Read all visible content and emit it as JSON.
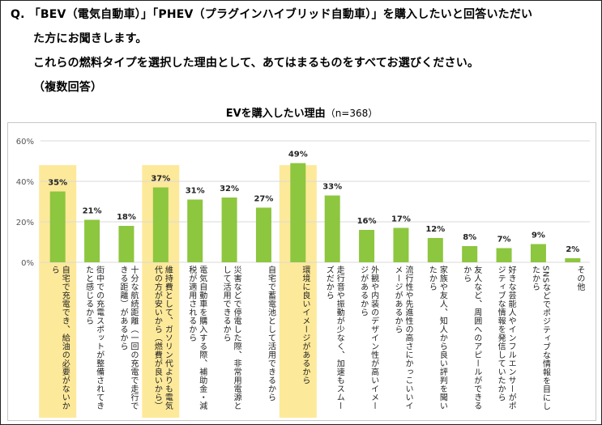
{
  "question": {
    "line1": "Q. 「BEV（電気自動車）」「PHEV（プラグインハイブリッド自動車）」を購入したいと回答いただい",
    "line2": "た方にお聞きします。",
    "line3": "これらの燃料タイプを選択した理由として、あてはまるものをすべてお選びください。",
    "line4": "（複数回答）"
  },
  "chart_data": {
    "type": "bar",
    "title": "EVを購入したい理由",
    "subtitle": "（n=368）",
    "ylim": [
      0,
      60
    ],
    "yticks": [
      "0%",
      "20%",
      "40%",
      "60%"
    ],
    "ytick_values": [
      0,
      20,
      40,
      60
    ],
    "bar_color": "#8dc63f",
    "highlight_color": "#fde99a",
    "categories": [
      "自宅で充電でき、給油の必要がないから",
      "街中での充電スポットが整備されてきたと感じるから",
      "十分な航続距離（一回の充電で走行できる距離）があるから",
      "維持費として、ガソリン代よりも電気代の方が安いから（燃費が良いから）",
      "電気自動車を購入する際、補助金・減税が適用されるから",
      "災害などで停電した際、非常用電源として活用できるから",
      "自宅で蓄電池として活用できるから",
      "環境に良いイメージがあるから",
      "走行音や振動が少なく、加速もスムーズだから",
      "外観や内装のデザイン性が高いイメージがあるから",
      "流行性や先進性の高さにかっこいいイメージがあるから",
      "家族や友人、知人から良い評判を聞いたから",
      "友人など、周囲へのアピールができるから",
      "好きな芸能人やインフルエンサーがポジティブな情報を発信していたから",
      "SNSなどでポジティブな情報を目にしたから",
      "その他"
    ],
    "values": [
      35,
      21,
      18,
      37,
      31,
      32,
      27,
      49,
      33,
      16,
      17,
      12,
      8,
      7,
      9,
      2
    ],
    "value_labels": [
      "35%",
      "21%",
      "18%",
      "37%",
      "31%",
      "32%",
      "27%",
      "49%",
      "33%",
      "16%",
      "17%",
      "12%",
      "8%",
      "7%",
      "9%",
      "2%"
    ],
    "highlighted": [
      true,
      false,
      false,
      true,
      false,
      false,
      false,
      true,
      false,
      false,
      false,
      false,
      false,
      false,
      false,
      false
    ]
  }
}
